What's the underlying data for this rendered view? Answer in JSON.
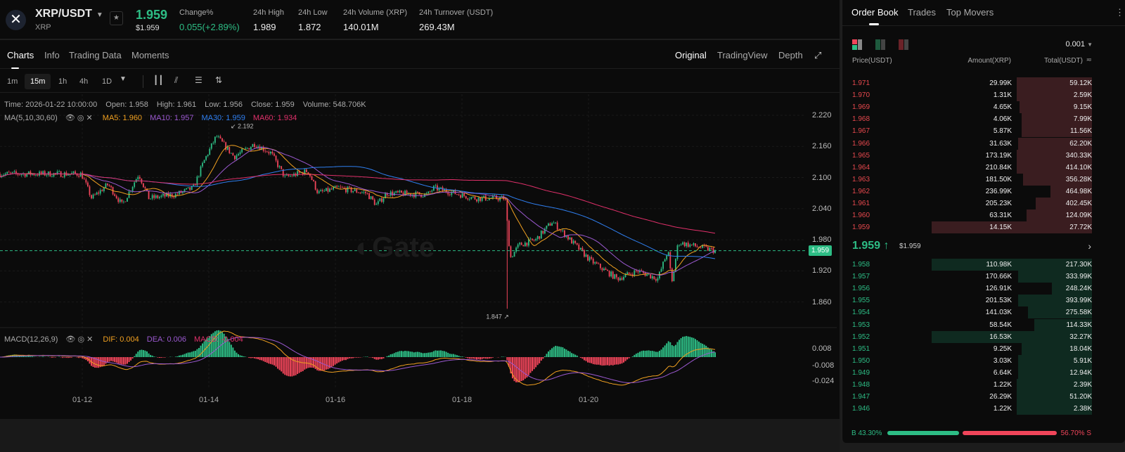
{
  "header": {
    "pair": "XRP/USDT",
    "base": "XRP",
    "last_price": "1.959",
    "last_price_usd": "$1.959",
    "stats": [
      {
        "label": "Change%",
        "value": "0.055(+2.89%)",
        "color": "#2dbd85"
      },
      {
        "label": "24h High",
        "value": "1.989"
      },
      {
        "label": "24h Low",
        "value": "1.872"
      },
      {
        "label": "24h Volume (XRP)",
        "value": "140.01M"
      },
      {
        "label": "24h Turnover (USDT)",
        "value": "269.43M"
      }
    ]
  },
  "tabs": [
    "Charts",
    "Info",
    "Trading Data",
    "Moments"
  ],
  "views": [
    "Original",
    "TradingView",
    "Depth"
  ],
  "timeframes": [
    "1m",
    "15m",
    "1h",
    "4h",
    "1D"
  ],
  "active_timeframe": "15m",
  "candle_info": {
    "time": "Time: 2026-01-22 10:00:00",
    "open": "Open: 1.958",
    "high": "High: 1.961",
    "low": "Low: 1.956",
    "close": "Close: 1.959",
    "volume": "Volume: 548.706K"
  },
  "ma_legend": {
    "label": "MA(5,10,30,60)",
    "ma5": "MA5: 1.960",
    "ma10": "MA10: 1.957",
    "ma30": "MA30: 1.959",
    "ma60": "MA60: 1.934"
  },
  "macd_legend": {
    "label": "MACD(12,26,9)",
    "dif": "DIF: 0.004",
    "dea": "DEA: 0.006",
    "macd": "MACD: -0.004"
  },
  "colors": {
    "up": "#2dbd85",
    "down": "#f0455a",
    "ma5": "#f0a020",
    "ma10": "#9b59d0",
    "ma30": "#2f7ff0",
    "ma60": "#e0306a"
  },
  "chart_data": {
    "type": "candlestick",
    "interval": "15m",
    "y_ticks": [
      "2.220",
      "2.160",
      "2.100",
      "2.040",
      "1.980",
      "1.920",
      "1.860"
    ],
    "ylim": [
      1.84,
      2.23
    ],
    "x_ticks": [
      "01-12",
      "01-14",
      "01-16",
      "01-18",
      "01-20"
    ],
    "macd_ticks": [
      "0.008",
      "-0.008",
      "-0.024"
    ],
    "current_price": "1.959",
    "max_label": "2.192",
    "min_label": "1.847",
    "close_path": [
      {
        "t": "01-10 17:00",
        "v": 2.107
      },
      {
        "t": "01-12 01:00",
        "v": 2.107
      },
      {
        "t": "01-12 05:00",
        "v": 2.06
      },
      {
        "t": "01-12 11:30",
        "v": 2.087
      },
      {
        "t": "01-12 17:00",
        "v": 2.047
      },
      {
        "t": "01-12 23:30",
        "v": 2.107
      },
      {
        "t": "01-13 03:30",
        "v": 2.06
      },
      {
        "t": "01-13 14:00",
        "v": 2.067
      },
      {
        "t": "01-13 21:00",
        "v": 2.08
      },
      {
        "t": "01-14 01:00",
        "v": 2.13
      },
      {
        "t": "01-14 06:00",
        "v": 2.18
      },
      {
        "t": "01-14 13:00",
        "v": 2.14
      },
      {
        "t": "01-14 21:00",
        "v": 2.165
      },
      {
        "t": "01-15 03:30",
        "v": 2.147
      },
      {
        "t": "01-15 09:00",
        "v": 2.1
      },
      {
        "t": "01-15 18:00",
        "v": 2.113
      },
      {
        "t": "01-15 22:00",
        "v": 2.07
      },
      {
        "t": "01-16 06:00",
        "v": 2.08
      },
      {
        "t": "01-16 17:00",
        "v": 2.07
      },
      {
        "t": "01-16 21:00",
        "v": 2.047
      },
      {
        "t": "01-17 01:00",
        "v": 2.07
      },
      {
        "t": "01-17 17:00",
        "v": 2.067
      },
      {
        "t": "01-17 19:30",
        "v": 2.08
      },
      {
        "t": "01-18 11:30",
        "v": 2.06
      },
      {
        "t": "01-18 23:30",
        "v": 2.06
      },
      {
        "t": "01-19 01:30",
        "v": 1.945
      },
      {
        "t": "01-19 05:00",
        "v": 1.97
      },
      {
        "t": "01-19 11:30",
        "v": 1.98
      },
      {
        "t": "01-19 18:00",
        "v": 2.015
      },
      {
        "t": "01-20 01:00",
        "v": 1.98
      },
      {
        "t": "01-20 09:00",
        "v": 1.94
      },
      {
        "t": "01-20 19:30",
        "v": 1.905
      },
      {
        "t": "01-21 03:30",
        "v": 1.92
      },
      {
        "t": "01-21 11:30",
        "v": 1.905
      },
      {
        "t": "01-21 15:30",
        "v": 1.96
      },
      {
        "t": "01-21 17:00",
        "v": 1.895
      },
      {
        "t": "01-21 19:30",
        "v": 1.975
      },
      {
        "t": "01-22 10:00",
        "v": 1.959
      }
    ]
  },
  "orderbook": {
    "tabs": [
      "Order Book",
      "Trades",
      "Top Movers"
    ],
    "precision": "0.001",
    "columns": [
      "Price(USDT)",
      "Amount(XRP)",
      "Total(USDT)"
    ],
    "asks": [
      {
        "price": "1.971",
        "amount": "29.99K",
        "total": "59.12K",
        "depth": 0.47
      },
      {
        "price": "1.970",
        "amount": "1.31K",
        "total": "2.59K",
        "depth": 0.47
      },
      {
        "price": "1.969",
        "amount": "4.65K",
        "total": "9.15K",
        "depth": 0.45
      },
      {
        "price": "1.968",
        "amount": "4.06K",
        "total": "7.99K",
        "depth": 0.44
      },
      {
        "price": "1.967",
        "amount": "5.87K",
        "total": "11.56K",
        "depth": 0.44
      },
      {
        "price": "1.966",
        "amount": "31.63K",
        "total": "62.20K",
        "depth": 0.46
      },
      {
        "price": "1.965",
        "amount": "173.19K",
        "total": "340.33K",
        "depth": 0.47
      },
      {
        "price": "1.964",
        "amount": "210.84K",
        "total": "414.10K",
        "depth": 0.47
      },
      {
        "price": "1.963",
        "amount": "181.50K",
        "total": "356.28K",
        "depth": 0.43
      },
      {
        "price": "1.962",
        "amount": "236.99K",
        "total": "464.98K",
        "depth": 0.26
      },
      {
        "price": "1.961",
        "amount": "205.23K",
        "total": "402.45K",
        "depth": 0.35
      },
      {
        "price": "1.960",
        "amount": "63.31K",
        "total": "124.09K",
        "depth": 0.41
      },
      {
        "price": "1.959",
        "amount": "14.15K",
        "total": "27.72K",
        "depth": 1.0
      }
    ],
    "mid": {
      "price": "1.959",
      "usd": "$1.959"
    },
    "bids": [
      {
        "price": "1.958",
        "amount": "110.98K",
        "total": "217.30K",
        "depth": 1.0
      },
      {
        "price": "1.957",
        "amount": "170.66K",
        "total": "333.99K",
        "depth": 0.46
      },
      {
        "price": "1.956",
        "amount": "126.91K",
        "total": "248.24K",
        "depth": 0.25
      },
      {
        "price": "1.955",
        "amount": "201.53K",
        "total": "393.99K",
        "depth": 0.46
      },
      {
        "price": "1.954",
        "amount": "141.03K",
        "total": "275.58K",
        "depth": 0.4
      },
      {
        "price": "1.953",
        "amount": "58.54K",
        "total": "114.33K",
        "depth": 0.36
      },
      {
        "price": "1.952",
        "amount": "16.53K",
        "total": "32.27K",
        "depth": 1.0
      },
      {
        "price": "1.951",
        "amount": "9.25K",
        "total": "18.04K",
        "depth": 0.44
      },
      {
        "price": "1.950",
        "amount": "3.03K",
        "total": "5.91K",
        "depth": 0.46
      },
      {
        "price": "1.949",
        "amount": "6.64K",
        "total": "12.94K",
        "depth": 0.46
      },
      {
        "price": "1.948",
        "amount": "1.22K",
        "total": "2.39K",
        "depth": 0.47
      },
      {
        "price": "1.947",
        "amount": "26.29K",
        "total": "51.20K",
        "depth": 0.47
      },
      {
        "price": "1.946",
        "amount": "1.22K",
        "total": "2.38K",
        "depth": 0.47
      }
    ],
    "buy_ratio": "B 43.30%",
    "sell_ratio": "56.70% S",
    "buy_fraction": 0.433
  }
}
